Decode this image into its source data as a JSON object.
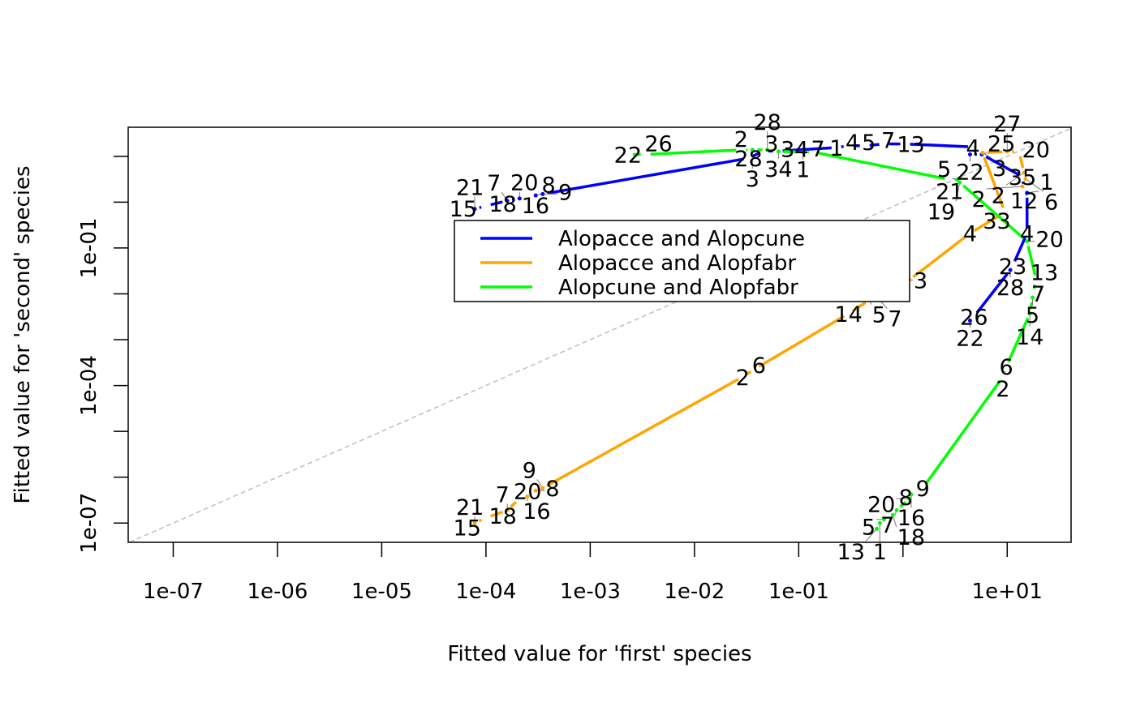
{
  "chart_data": {
    "type": "line",
    "xlabel": "Fitted value for 'first' species",
    "ylabel": "Fitted value for 'second' species",
    "xscale": "log",
    "yscale": "log",
    "xlim": [
      3.7e-08,
      41
    ],
    "ylim": [
      3.8e-08,
      43
    ],
    "grid": false,
    "legend_position": "center",
    "reference_line": {
      "type": "y = x",
      "style": "dashed",
      "color": "#BEBEBE"
    },
    "x_ticks": [
      {
        "value": 1e-07,
        "label": "1e-07"
      },
      {
        "value": 1e-06,
        "label": "1e-06"
      },
      {
        "value": 1e-05,
        "label": "1e-05"
      },
      {
        "value": 0.0001,
        "label": "1e-04"
      },
      {
        "value": 0.001,
        "label": "1e-03"
      },
      {
        "value": 0.01,
        "label": "1e-02"
      },
      {
        "value": 0.1,
        "label": "1e-01"
      },
      {
        "value": 1,
        "label": ""
      },
      {
        "value": 10,
        "label": "1e+01"
      }
    ],
    "y_ticks": [
      {
        "value": 1e-07,
        "label": "1e-07"
      },
      {
        "value": 1e-06,
        "label": ""
      },
      {
        "value": 1e-05,
        "label": ""
      },
      {
        "value": 0.0001,
        "label": "1e-04"
      },
      {
        "value": 0.001,
        "label": ""
      },
      {
        "value": 0.01,
        "label": ""
      },
      {
        "value": 0.1,
        "label": "1e-01"
      },
      {
        "value": 1,
        "label": ""
      },
      {
        "value": 10,
        "label": ""
      }
    ],
    "series": [
      {
        "name": "Alopacce and Alopcune",
        "color": "#0000FF",
        "points": [
          [
            6.6e-05,
            0.6,
            "15"
          ],
          [
            7.8e-05,
            0.71,
            "21"
          ],
          [
            0.0001,
            0.83,
            "18"
          ],
          [
            0.00016,
            1.07,
            "7"
          ],
          [
            0.00021,
            1.2,
            "20"
          ],
          [
            0.00025,
            1.3,
            "16"
          ],
          [
            0.0003,
            1.4,
            "8"
          ],
          [
            0.00035,
            1.5,
            "9"
          ],
          [
            0.033,
            9.1,
            "28"
          ],
          [
            0.046,
            13,
            "3"
          ],
          [
            0.063,
            13,
            "34"
          ],
          [
            0.23,
            15.5,
            "1"
          ],
          [
            0.3,
            17,
            "4"
          ],
          [
            0.43,
            17,
            "5"
          ],
          [
            0.66,
            18.6,
            "7"
          ],
          [
            1.05,
            18.6,
            "13"
          ],
          [
            4.7,
            16,
            "4"
          ],
          [
            4.4,
            11,
            "22"
          ],
          [
            5.7,
            11,
            "25"
          ],
          [
            14,
            3.6,
            "35"
          ],
          [
            14.5,
            1.95,
            "12"
          ],
          [
            15.5,
            1.6,
            "1"
          ],
          [
            15.5,
            0.21,
            "4"
          ],
          [
            11.3,
            0.041,
            "23"
          ],
          [
            10.7,
            0.033,
            "28"
          ],
          [
            4.8,
            0.0032,
            "26"
          ],
          [
            4.4,
            0.0026,
            "22"
          ]
        ]
      },
      {
        "name": "Alopacce and Alopfabr",
        "color": "#FFA500",
        "points": [
          [
            6.6e-05,
            8.1e-08,
            "15"
          ],
          [
            7.8e-05,
            1e-07,
            "21"
          ],
          [
            0.0001,
            1.3e-07,
            "18"
          ],
          [
            0.00016,
            1.9e-07,
            "7"
          ],
          [
            0.00021,
            3.4e-07,
            "20"
          ],
          [
            0.00025,
            3.8e-07,
            "16"
          ],
          [
            0.0003,
            5.1e-07,
            "8"
          ],
          [
            0.00035,
            5.8e-07,
            "9"
          ],
          [
            0.029,
            0.000155,
            "2"
          ],
          [
            0.038,
            0.00023,
            "6"
          ],
          [
            0.3,
            0.0037,
            "14"
          ],
          [
            0.48,
            0.0074,
            "5"
          ],
          [
            0.56,
            0.0087,
            "7"
          ],
          [
            1.15,
            0.02,
            "3"
          ],
          [
            4.4,
            0.21,
            "4"
          ],
          [
            9.5,
            0.6,
            "33"
          ],
          [
            5.8,
            12,
            "3"
          ],
          [
            10,
            12.7,
            "27"
          ],
          [
            13,
            12.7,
            "20"
          ],
          [
            14.5,
            4.4,
            "2"
          ],
          [
            15,
            3.2,
            "6"
          ],
          [
            14,
            2.2,
            "2"
          ]
        ]
      },
      {
        "name": "Alopcune and Alopfabr",
        "color": "#00FF00",
        "points": [
          [
            0.0023,
            11,
            "22"
          ],
          [
            0.0034,
            11,
            "26"
          ],
          [
            0.028,
            13.8,
            "2"
          ],
          [
            0.036,
            13.8,
            "3"
          ],
          [
            0.05,
            13.8,
            "28"
          ],
          [
            0.064,
            12.8,
            "34"
          ],
          [
            0.11,
            12.3,
            "1"
          ],
          [
            0.14,
            12.3,
            "7"
          ],
          [
            2.8,
            3.1,
            "21"
          ],
          [
            3.3,
            3.1,
            "5"
          ],
          [
            3.5,
            2.7,
            "19"
          ],
          [
            15.5,
            0.14,
            "20"
          ],
          [
            19,
            0.02,
            "13"
          ],
          [
            17.5,
            0.0103,
            "7"
          ],
          [
            17.5,
            0.0083,
            "5"
          ],
          [
            16.5,
            0.0037,
            "14"
          ],
          [
            9.8,
            0.00026,
            "6"
          ],
          [
            9.1,
            0.000155,
            "2"
          ],
          [
            1.55,
            5.8e-07,
            "9"
          ],
          [
            1.27,
            5.6e-07,
            "8"
          ],
          [
            1.2,
            4.2e-07,
            "16"
          ],
          [
            1.15,
            3.4e-07,
            "20"
          ],
          [
            0.87,
            1.9e-07,
            "7"
          ],
          [
            0.8,
            1.5e-07,
            "18"
          ],
          [
            0.66,
            1.2e-07,
            "5"
          ],
          [
            0.6,
            1e-07,
            "1"
          ],
          [
            0.56,
            7.5e-08,
            "13"
          ]
        ]
      }
    ]
  }
}
